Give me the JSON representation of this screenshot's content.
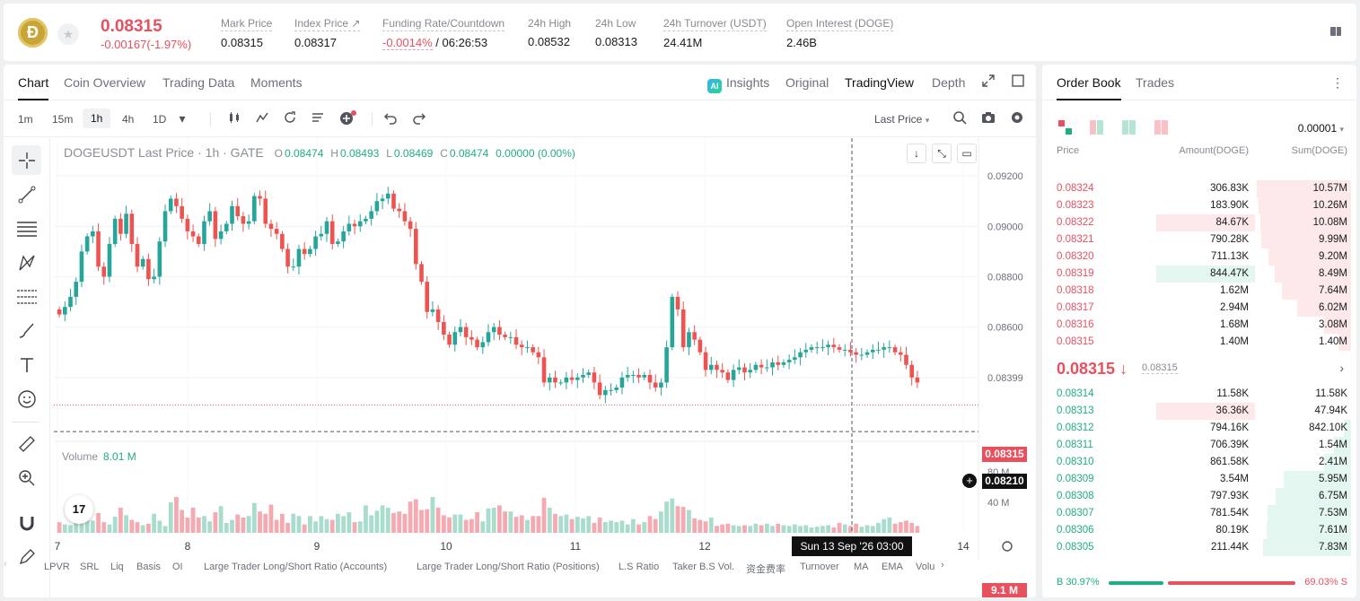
{
  "header": {
    "coin_logo_text": "Ð",
    "last_price": "0.08315",
    "change": "-0.00167(-1.97%)",
    "stats": [
      {
        "label": "Mark Price",
        "value": "0.08315"
      },
      {
        "label": "Index Price ↗",
        "value": "0.08317"
      },
      {
        "label": "Funding Rate/Countdown",
        "value_red": "-0.0014%",
        "value": " / 06:26:53"
      },
      {
        "label": "24h High",
        "value": "0.08532"
      },
      {
        "label": "24h Low",
        "value": "0.08313"
      },
      {
        "label": "24h Turnover (USDT)",
        "value": "24.41M"
      },
      {
        "label": "Open Interest (DOGE)",
        "value": "2.46B"
      }
    ]
  },
  "chart_tabs": [
    "Chart",
    "Coin Overview",
    "Trading Data",
    "Moments"
  ],
  "chart_views": [
    "Insights",
    "Original",
    "TradingView",
    "Depth"
  ],
  "timeframes": [
    "1m",
    "15m",
    "1h",
    "4h",
    "1D"
  ],
  "price_source": "Last Price",
  "legend": {
    "symbol": "DOGEUSDT Last Price · 1h · GATE",
    "o_label": "O",
    "o": "0.08474",
    "h_label": "H",
    "h": "0.08493",
    "l_label": "L",
    "l": "0.08469",
    "c_label": "C",
    "c": "0.08474",
    "chg": "0.00000 (0.00%)"
  },
  "volume_label": "Volume",
  "volume_value": "8.01 M",
  "tv_logo": "17",
  "price_tags": {
    "last": "0.08315",
    "crosshair": "0.08210",
    "volume": "9.1 M"
  },
  "crosshair_date": "Sun 13 Sep '26   03:00",
  "indicators": [
    "LPVR",
    "SRL",
    "Liq",
    "Basis",
    "OI",
    "Large Trader Long/Short Ratio (Accounts)",
    "Large Trader Long/Short Ratio (Positions)",
    "L.S Ratio",
    "Taker B.S Vol.",
    "资金费率",
    "Turnover",
    "MA",
    "EMA",
    "Volu"
  ],
  "chart_data": {
    "type": "candlestick",
    "price_axis_ticks": [
      "0.09200",
      "0.09000",
      "0.08800",
      "0.08600",
      "0.08399"
    ],
    "volume_axis_ticks": [
      "80 M",
      "40 M"
    ],
    "x_ticks": [
      "7",
      "8",
      "9",
      "10",
      "11",
      "12",
      "14"
    ],
    "up_color": "#26a69a",
    "down_color": "#ef5350",
    "close_path": [
      0.0865,
      0.0868,
      0.0872,
      0.0878,
      0.089,
      0.0896,
      0.0898,
      0.0884,
      0.088,
      0.0893,
      0.0903,
      0.0897,
      0.0905,
      0.0893,
      0.0884,
      0.0887,
      0.0879,
      0.088,
      0.0894,
      0.0906,
      0.0911,
      0.0908,
      0.0903,
      0.0898,
      0.0896,
      0.0893,
      0.0902,
      0.0906,
      0.0895,
      0.0898,
      0.0901,
      0.0908,
      0.0904,
      0.0901,
      0.0902,
      0.0912,
      0.0911,
      0.0901,
      0.0899,
      0.0897,
      0.0891,
      0.0884,
      0.0884,
      0.0891,
      0.0889,
      0.0891,
      0.0896,
      0.0897,
      0.0902,
      0.0893,
      0.0894,
      0.0898,
      0.0901,
      0.09,
      0.0902,
      0.0903,
      0.0906,
      0.091,
      0.0911,
      0.0913,
      0.0907,
      0.0906,
      0.0902,
      0.0899,
      0.0885,
      0.0878,
      0.0866,
      0.0867,
      0.0862,
      0.0857,
      0.0853,
      0.0858,
      0.086,
      0.0856,
      0.0855,
      0.0852,
      0.0854,
      0.0858,
      0.086,
      0.0857,
      0.0856,
      0.0856,
      0.0853,
      0.0852,
      0.0852,
      0.085,
      0.0848,
      0.0838,
      0.084,
      0.0838,
      0.0838,
      0.084,
      0.0839,
      0.084,
      0.0841,
      0.0842,
      0.0838,
      0.0833,
      0.0835,
      0.0835,
      0.0836,
      0.084,
      0.0841,
      0.0841,
      0.084,
      0.0841,
      0.0838,
      0.0836,
      0.0838,
      0.0852,
      0.0872,
      0.0867,
      0.0852,
      0.0858,
      0.0855,
      0.085,
      0.0843,
      0.0845,
      0.0843,
      0.0842,
      0.0839,
      0.0843,
      0.0844,
      0.0842,
      0.0843,
      0.0845,
      0.0844,
      0.0844,
      0.0846,
      0.0845,
      0.0846,
      0.0847,
      0.0848,
      0.085,
      0.0851,
      0.0852,
      0.0852,
      0.0852,
      0.0853,
      0.0852,
      0.0851,
      0.0851,
      0.085,
      0.0849,
      0.0849,
      0.085,
      0.0851,
      0.0851,
      0.0852,
      0.0852,
      0.085,
      0.0849,
      0.0845,
      0.084,
      0.0838
    ],
    "volume_path": [
      14,
      11,
      10,
      13,
      17,
      22,
      16,
      26,
      14,
      11,
      21,
      33,
      23,
      17,
      14,
      10,
      12,
      25,
      16,
      9,
      40,
      47,
      30,
      20,
      33,
      20,
      22,
      15,
      27,
      35,
      13,
      17,
      24,
      20,
      22,
      39,
      28,
      25,
      37,
      17,
      25,
      13,
      25,
      22,
      11,
      22,
      15,
      22,
      18,
      17,
      25,
      22,
      27,
      14,
      15,
      36,
      23,
      29,
      36,
      33,
      26,
      28,
      25,
      41,
      44,
      30,
      31,
      47,
      33,
      23,
      20,
      24,
      24,
      17,
      18,
      27,
      15,
      32,
      33,
      36,
      28,
      28,
      21,
      23,
      17,
      22,
      22,
      46,
      33,
      25,
      22,
      24,
      18,
      21,
      19,
      22,
      13,
      20,
      14,
      16,
      14,
      16,
      11,
      18,
      11,
      14,
      22,
      18,
      28,
      41,
      45,
      35,
      34,
      30,
      19,
      17,
      15,
      20,
      9,
      11,
      12,
      10,
      9,
      10,
      9,
      12,
      10,
      12,
      9,
      12,
      10,
      9,
      11,
      9,
      10,
      7,
      8,
      9,
      10,
      7,
      13,
      11,
      9,
      12,
      8,
      10,
      9,
      13,
      18,
      20,
      12,
      14,
      16,
      13,
      9
    ]
  },
  "orderbook": {
    "tabs": [
      "Order Book",
      "Trades"
    ],
    "precision": "0.00001",
    "headers": [
      "Price",
      "Amount(DOGE)",
      "Sum(DOGE)"
    ],
    "asks": [
      {
        "price": "0.08324",
        "amount": "306.83K",
        "sum": "10.57M",
        "sum_pct": 100,
        "amt_pct": 0
      },
      {
        "price": "0.08323",
        "amount": "183.90K",
        "sum": "10.26M",
        "sum_pct": 98,
        "amt_pct": 0
      },
      {
        "price": "0.08322",
        "amount": "84.67K",
        "sum": "10.08M",
        "sum_pct": 96,
        "amt_pct": 100
      },
      {
        "price": "0.08321",
        "amount": "790.28K",
        "sum": "9.99M",
        "sum_pct": 95,
        "amt_pct": 0
      },
      {
        "price": "0.08320",
        "amount": "711.13K",
        "sum": "9.20M",
        "sum_pct": 88,
        "amt_pct": 0
      },
      {
        "price": "0.08319",
        "amount": "844.47K",
        "sum": "8.49M",
        "sum_pct": 81,
        "amt_pct": 100,
        "amt_green": true
      },
      {
        "price": "0.08318",
        "amount": "1.62M",
        "sum": "7.64M",
        "sum_pct": 73,
        "amt_pct": 0
      },
      {
        "price": "0.08317",
        "amount": "2.94M",
        "sum": "6.02M",
        "sum_pct": 57,
        "amt_pct": 0
      },
      {
        "price": "0.08316",
        "amount": "1.68M",
        "sum": "3.08M",
        "sum_pct": 29,
        "amt_pct": 0
      },
      {
        "price": "0.08315",
        "amount": "1.40M",
        "sum": "1.40M",
        "sum_pct": 13,
        "amt_pct": 0
      }
    ],
    "mid_price": "0.08315 ↓",
    "mid_mark": "0.08315",
    "bids": [
      {
        "price": "0.08314",
        "amount": "11.58K",
        "sum": "11.58K",
        "sum_pct": 0,
        "amt_pct": 0
      },
      {
        "price": "0.08313",
        "amount": "36.36K",
        "sum": "47.94K",
        "sum_pct": 0,
        "amt_pct": 100,
        "amt_red": true
      },
      {
        "price": "0.08312",
        "amount": "794.16K",
        "sum": "842.10K",
        "sum_pct": 8,
        "amt_pct": 0
      },
      {
        "price": "0.08311",
        "amount": "706.39K",
        "sum": "1.54M",
        "sum_pct": 18,
        "amt_pct": 0
      },
      {
        "price": "0.08310",
        "amount": "861.58K",
        "sum": "2.41M",
        "sum_pct": 29,
        "amt_pct": 0
      },
      {
        "price": "0.08309",
        "amount": "3.54M",
        "sum": "5.95M",
        "sum_pct": 71,
        "amt_pct": 0
      },
      {
        "price": "0.08308",
        "amount": "797.93K",
        "sum": "6.75M",
        "sum_pct": 80,
        "amt_pct": 0
      },
      {
        "price": "0.08307",
        "amount": "781.54K",
        "sum": "7.53M",
        "sum_pct": 89,
        "amt_pct": 0
      },
      {
        "price": "0.08306",
        "amount": "80.19K",
        "sum": "7.61M",
        "sum_pct": 90,
        "amt_pct": 0
      },
      {
        "price": "0.08305",
        "amount": "211.44K",
        "sum": "7.83M",
        "sum_pct": 93,
        "amt_pct": 0
      }
    ],
    "buy_ratio": "B 30.97%",
    "sell_ratio": "69.03% S",
    "buy_pct": 30.97
  }
}
